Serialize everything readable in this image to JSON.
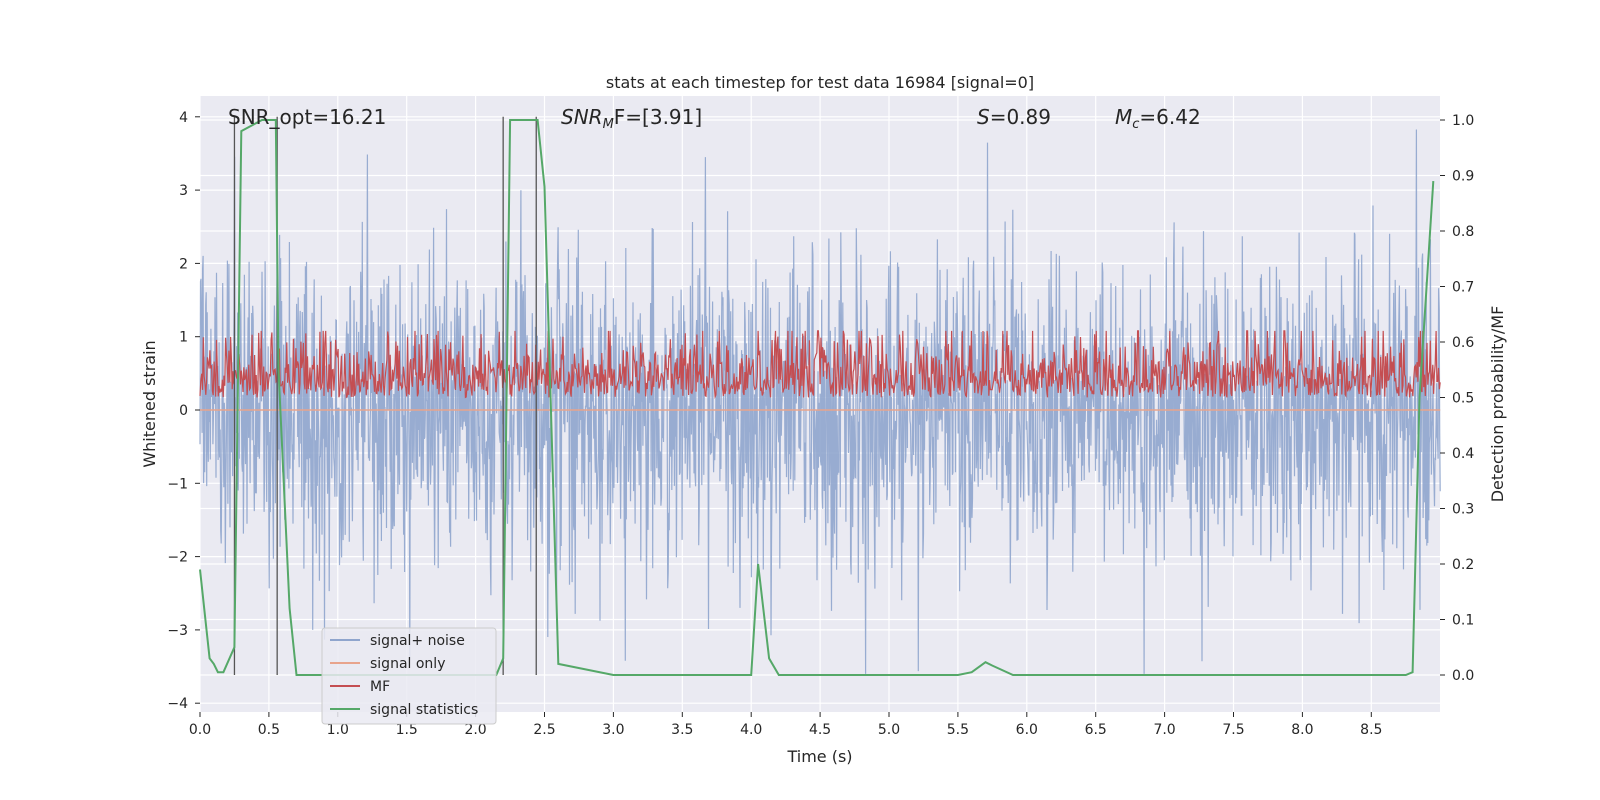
{
  "chart_data": {
    "type": "line",
    "title": "stats at each timestep for test data 16984 [signal=0]",
    "xlabel": "Time (s)",
    "ylabel": "Whitened strain",
    "y2label": "Detection probability/MF",
    "xlim": [
      0,
      9.0
    ],
    "ylim": [
      -4,
      4.4
    ],
    "y2lim": [
      -0.05,
      1.05
    ],
    "x_ticks": [
      0.0,
      0.5,
      1.0,
      1.5,
      2.0,
      2.5,
      3.0,
      3.5,
      4.0,
      4.5,
      5.0,
      5.5,
      6.0,
      6.5,
      7.0,
      7.5,
      8.0,
      8.5
    ],
    "x_tick_labels": [
      "0.0",
      "0.5",
      "1.0",
      "1.5",
      "2.0",
      "2.5",
      "3.0",
      "3.5",
      "4.0",
      "4.5",
      "5.0",
      "5.5",
      "6.0",
      "6.5",
      "7.0",
      "7.5",
      "8.0",
      "8.5"
    ],
    "y_ticks": [
      -4,
      -3,
      -2,
      -1,
      0,
      1,
      2,
      3,
      4
    ],
    "y_tick_labels": [
      "−4",
      "−3",
      "−2",
      "−1",
      "0",
      "1",
      "2",
      "3",
      "4"
    ],
    "y2_ticks": [
      0.0,
      0.1,
      0.2,
      0.3,
      0.4,
      0.5,
      0.6,
      0.7,
      0.8,
      0.9,
      1.0
    ],
    "y2_tick_labels": [
      "0.0",
      "0.1",
      "0.2",
      "0.3",
      "0.4",
      "0.5",
      "0.6",
      "0.7",
      "0.8",
      "0.9",
      "1.0"
    ],
    "grid": true,
    "legend_position": "lower-left",
    "annotations": {
      "snr_opt": "SNR_opt=16.21",
      "snr_mf_main": "SNR",
      "snr_mf_sub": "M",
      "snr_mf_tail": "F=[3.91]",
      "spin_main": "S",
      "spin_tail": "=0.89",
      "mc_main": "M",
      "mc_sub": "c",
      "mc_tail": "=6.42"
    },
    "series": [
      {
        "name": "signal+ noise",
        "color": "#8fa5cd",
        "style": "noise",
        "amplitude_range": [
          -3.6,
          4.0
        ]
      },
      {
        "name": "signal only",
        "color": "#e8a48c",
        "values": [
          0.0
        ],
        "x": [
          0.0
        ]
      },
      {
        "name": "MF",
        "color": "#c44e52",
        "style": "mf",
        "axis": "y2",
        "range": [
          0.5,
          0.62
        ]
      },
      {
        "name": "signal statistics",
        "color": "#55a868",
        "axis": "y2",
        "x": [
          0.0,
          0.07,
          0.1,
          0.13,
          0.17,
          0.25,
          0.3,
          0.45,
          0.55,
          0.57,
          0.65,
          0.7,
          2.15,
          2.2,
          2.25,
          2.35,
          2.45,
          2.5,
          2.6,
          3.0,
          3.5,
          3.95,
          4.0,
          4.05,
          4.13,
          4.2,
          5.0,
          5.5,
          5.6,
          5.7,
          5.75,
          5.9,
          6.5,
          7.5,
          8.5,
          8.75,
          8.8,
          8.85,
          8.95
        ],
        "values": [
          0.19,
          0.03,
          0.02,
          0.005,
          0.005,
          0.05,
          0.98,
          1.0,
          1.0,
          0.55,
          0.12,
          0.0,
          0.0,
          0.03,
          1.0,
          1.0,
          1.0,
          0.88,
          0.02,
          0.0,
          0.0,
          0.0,
          0.0,
          0.2,
          0.03,
          0.0,
          0.0,
          0.0,
          0.005,
          0.023,
          0.017,
          0.0,
          0.0,
          0.0,
          0.0,
          0.0,
          0.005,
          0.5,
          0.89
        ]
      }
    ],
    "vertical_lines": [
      0.25,
      0.56,
      2.2,
      2.44
    ],
    "vertical_line_top": 4.0
  }
}
